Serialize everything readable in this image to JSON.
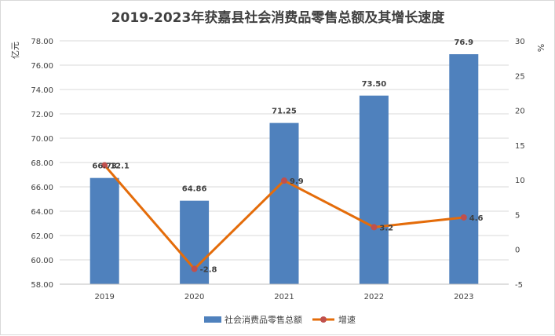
{
  "chart_data": {
    "type": "bar+line",
    "title": "2019-2023年获嘉县社会消费品零售总额及其增长速度",
    "categories": [
      "2019",
      "2020",
      "2021",
      "2022",
      "2023"
    ],
    "series": [
      {
        "name": "社会消费品零售总额",
        "type": "bar",
        "axis": "left",
        "values": [
          66.73,
          64.86,
          71.25,
          73.5,
          76.9
        ],
        "labels": [
          "66.73",
          "64.86",
          "71.25",
          "73.50",
          "76.9"
        ],
        "color": "#4f81bd"
      },
      {
        "name": "增速",
        "type": "line",
        "axis": "right",
        "values": [
          12.1,
          -2.8,
          9.9,
          3.2,
          4.6
        ],
        "labels": [
          "12.1",
          "-2.8",
          "9.9",
          "3.2",
          "4.6"
        ],
        "color": "#e46c0a",
        "marker_color": "#c0504d"
      }
    ],
    "y_left": {
      "label": "亿元",
      "min": 58,
      "max": 78,
      "step": 2,
      "tick_labels": [
        "58.00",
        "60.00",
        "62.00",
        "64.00",
        "66.00",
        "68.00",
        "70.00",
        "72.00",
        "74.00",
        "76.00",
        "78.00"
      ]
    },
    "y_right": {
      "label": "%",
      "min": -5,
      "max": 30,
      "step": 5,
      "tick_labels": [
        "-5",
        "0",
        "5",
        "10",
        "15",
        "20",
        "25",
        "30"
      ]
    },
    "grid": true,
    "legend_position": "bottom"
  }
}
